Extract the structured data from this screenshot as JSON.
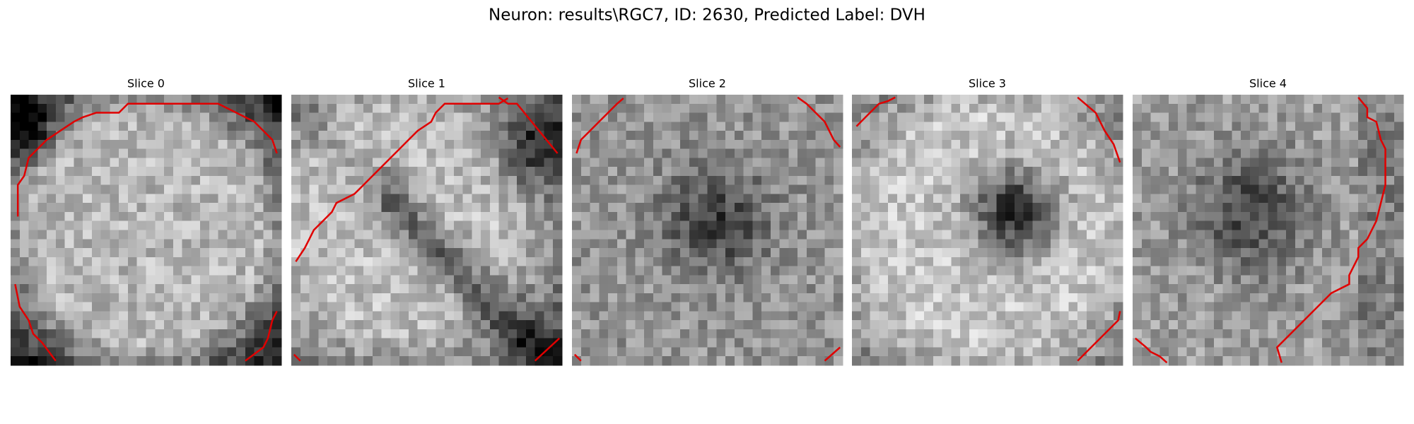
{
  "title": "Neuron: results\\RGC7, ID: 2630, Predicted Label: DVH",
  "panels": [
    {
      "title": "Slice 0"
    },
    {
      "title": "Slice 1"
    },
    {
      "title": "Slice 2"
    },
    {
      "title": "Slice 3"
    },
    {
      "title": "Slice 4"
    }
  ]
}
